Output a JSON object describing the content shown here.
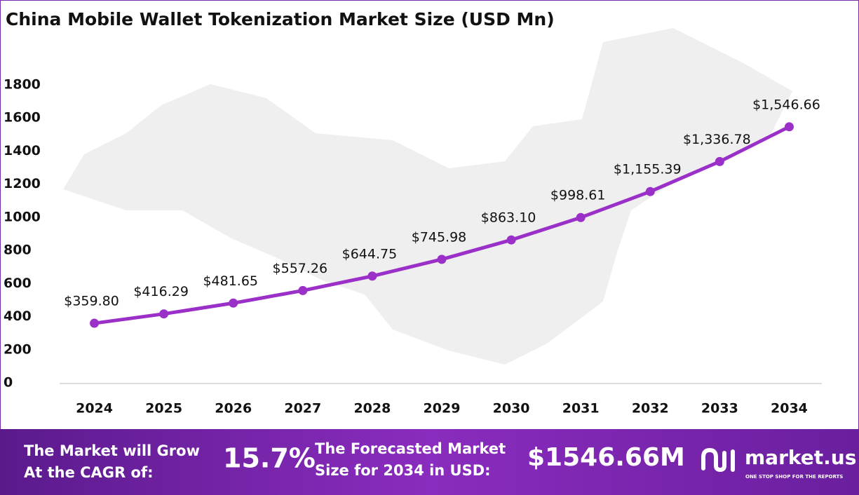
{
  "chart_data": {
    "type": "line",
    "title": "China Mobile Wallet Tokenization Market Size (USD Mn)",
    "categories": [
      "2024",
      "2025",
      "2026",
      "2027",
      "2028",
      "2029",
      "2030",
      "2031",
      "2032",
      "2033",
      "2034"
    ],
    "values": [
      359.8,
      416.29,
      481.65,
      557.26,
      644.75,
      745.98,
      863.1,
      998.61,
      1155.39,
      1336.78,
      1546.66
    ],
    "value_labels": [
      "$359.80",
      "$416.29",
      "$481.65",
      "$557.26",
      "$644.75",
      "$745.98",
      "$863.10",
      "$998.61",
      "$1,155.39",
      "$1,336.78",
      "$1,546.66"
    ],
    "color": "#9b30c8",
    "ylim": [
      0,
      1800
    ],
    "yticks": [
      0,
      200,
      400,
      600,
      800,
      1000,
      1200,
      1400,
      1600,
      1800
    ],
    "grid": false
  },
  "footer": {
    "cagr_text": [
      "The Market will Grow",
      "At the CAGR of:"
    ],
    "cagr": "15.7%",
    "forecast_text": [
      "The Forecasted Market",
      "Size for 2034 in USD:"
    ],
    "forecast": "$1546.66M",
    "brand": "market.us",
    "tagline": "ONE STOP SHOP FOR THE REPORTS"
  }
}
